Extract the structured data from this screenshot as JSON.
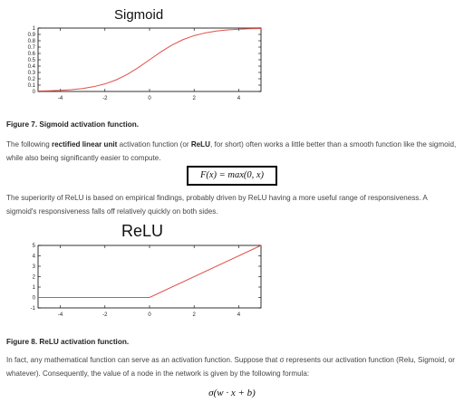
{
  "sigmoid_chart": {
    "title": "Sigmoid",
    "caption": "Figure 7. Sigmoid activation function."
  },
  "relu_chart": {
    "title": "ReLU",
    "caption": "Figure 8. ReLU activation function."
  },
  "text": {
    "para1_pre": "The following ",
    "para1_bold1": "rectified linear unit",
    "para1_mid": " activation function (or ",
    "para1_bold2": "ReLU",
    "para1_post": ", for short) often works a little better than a smooth function like the sigmoid, while also being significantly easier to compute.",
    "formula1": "F(x) = max(0, x)",
    "para2": "The superiority of ReLU is based on empirical findings, probably driven by ReLU having a more useful range of responsiveness. A sigmoid's responsiveness falls off relatively quickly on both sides.",
    "para3": "In fact, any mathematical function can serve as an activation function. Suppose that σ represents our activation function (Relu, Sigmoid, or whatever). Consequently, the value of a node in the network is given by the following formula:",
    "formula2": "σ(w · x + b)"
  },
  "colors": {
    "curve": "#e0504a",
    "axis": "#000000"
  },
  "chart_data": [
    {
      "type": "line",
      "title": "Sigmoid",
      "xlim": [
        -5,
        5
      ],
      "ylim": [
        0,
        1
      ],
      "xticks": [
        -4,
        -2,
        0,
        2,
        4
      ],
      "yticks": [
        0,
        0.1,
        0.2,
        0.3,
        0.4,
        0.5,
        0.6,
        0.7,
        0.8,
        0.9,
        1
      ],
      "series": [
        {
          "x": [
            -5,
            -4.5,
            -4,
            -3.5,
            -3,
            -2.5,
            -2,
            -1.5,
            -1,
            -0.5,
            0,
            0.5,
            1,
            1.5,
            2,
            2.5,
            3,
            3.5,
            4,
            4.5,
            5
          ],
          "y": [
            0.007,
            0.011,
            0.018,
            0.029,
            0.047,
            0.076,
            0.119,
            0.182,
            0.269,
            0.378,
            0.5,
            0.622,
            0.731,
            0.818,
            0.881,
            0.924,
            0.953,
            0.971,
            0.982,
            0.989,
            0.993
          ]
        }
      ]
    },
    {
      "type": "line",
      "title": "ReLU",
      "xlim": [
        -5,
        5
      ],
      "ylim": [
        -1,
        5
      ],
      "xticks": [
        -4,
        -2,
        0,
        2,
        4
      ],
      "yticks": [
        -1,
        0,
        1,
        2,
        3,
        4,
        5
      ],
      "series": [
        {
          "x": [
            -5,
            0,
            5
          ],
          "y": [
            0,
            0,
            5
          ]
        }
      ]
    }
  ]
}
